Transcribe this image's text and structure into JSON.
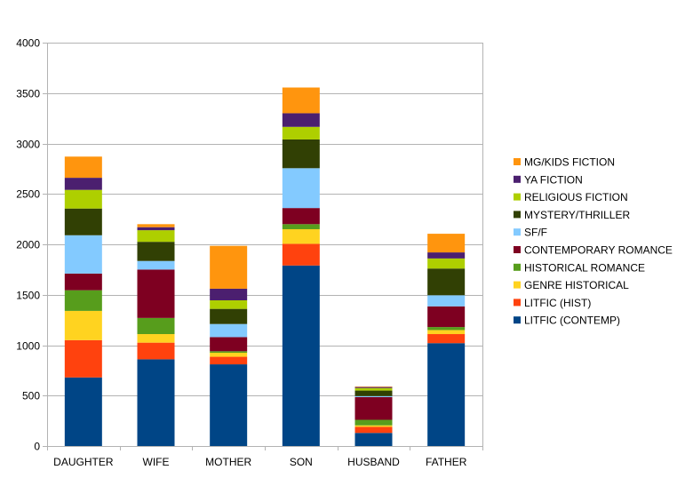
{
  "chart_data": {
    "type": "bar",
    "stacked": true,
    "title": "",
    "xlabel": "",
    "ylabel": "",
    "ylim": [
      0,
      4000
    ],
    "yticks": [
      0,
      500,
      1000,
      1500,
      2000,
      2500,
      3000,
      3500,
      4000
    ],
    "grid": "horizontal",
    "legend_position": "right",
    "categories": [
      "DAUGHTER",
      "WIFE",
      "MOTHER",
      "SON",
      "HUSBAND",
      "FATHER"
    ],
    "series": [
      {
        "name": "LITFIC (CONTEMP)",
        "color": "#004586",
        "values": [
          680,
          860,
          810,
          1790,
          130,
          1020
        ]
      },
      {
        "name": "LITFIC (HIST)",
        "color": "#ff420e",
        "values": [
          370,
          165,
          75,
          215,
          60,
          90
        ]
      },
      {
        "name": "GENRE HISTORICAL",
        "color": "#ffd320",
        "values": [
          290,
          85,
          40,
          145,
          15,
          40
        ]
      },
      {
        "name": "HISTORICAL ROMANCE",
        "color": "#579d1c",
        "values": [
          205,
          160,
          15,
          50,
          55,
          30
        ]
      },
      {
        "name": "CONTEMPORARY ROMANCE",
        "color": "#7e0021",
        "values": [
          165,
          480,
          140,
          160,
          225,
          205
        ]
      },
      {
        "name": "SF/F",
        "color": "#83caff",
        "values": [
          380,
          85,
          130,
          395,
          10,
          110
        ]
      },
      {
        "name": "MYSTERY/THRILLER",
        "color": "#314004",
        "values": [
          265,
          190,
          150,
          285,
          55,
          265
        ]
      },
      {
        "name": "RELIGIOUS FICTION",
        "color": "#aecf00",
        "values": [
          185,
          115,
          85,
          125,
          25,
          100
        ]
      },
      {
        "name": "YA FICTION",
        "color": "#4b1f6f",
        "values": [
          120,
          30,
          115,
          135,
          10,
          60
        ]
      },
      {
        "name": "MG/KIDS FICTION",
        "color": "#ff950e",
        "values": [
          210,
          30,
          425,
          255,
          5,
          185
        ]
      }
    ]
  }
}
